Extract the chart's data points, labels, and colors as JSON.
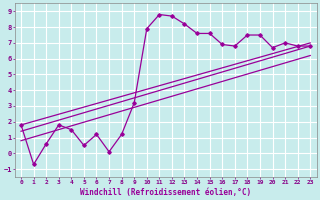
{
  "title": "",
  "xlabel": "Windchill (Refroidissement éolien,°C)",
  "ylabel": "",
  "bg_color": "#c8ecec",
  "grid_color": "#ffffff",
  "line_color": "#990099",
  "xlim": [
    -0.5,
    23.5
  ],
  "ylim": [
    -1.5,
    9.5
  ],
  "xticks": [
    0,
    1,
    2,
    3,
    4,
    5,
    6,
    7,
    8,
    9,
    10,
    11,
    12,
    13,
    14,
    15,
    16,
    17,
    18,
    19,
    20,
    21,
    22,
    23
  ],
  "yticks": [
    -1,
    0,
    1,
    2,
    3,
    4,
    5,
    6,
    7,
    8,
    9
  ],
  "curve1_x": [
    0,
    1,
    2,
    3,
    4,
    5,
    6,
    7,
    8,
    9,
    10,
    11,
    12,
    13,
    14,
    15,
    16,
    17,
    18,
    19,
    20,
    21,
    22,
    23
  ],
  "curve1_y": [
    1.8,
    -0.7,
    0.6,
    1.8,
    1.5,
    0.5,
    1.2,
    0.1,
    1.2,
    3.2,
    7.9,
    8.8,
    8.7,
    8.2,
    7.6,
    7.6,
    6.9,
    6.8,
    7.5,
    7.5,
    6.7,
    7.0,
    6.8,
    6.8
  ],
  "line1_x": [
    0,
    23
  ],
  "line1_y": [
    1.8,
    7.0
  ],
  "line2_x": [
    0,
    23
  ],
  "line2_y": [
    1.4,
    6.8
  ],
  "line3_x": [
    0,
    23
  ],
  "line3_y": [
    0.8,
    6.2
  ]
}
